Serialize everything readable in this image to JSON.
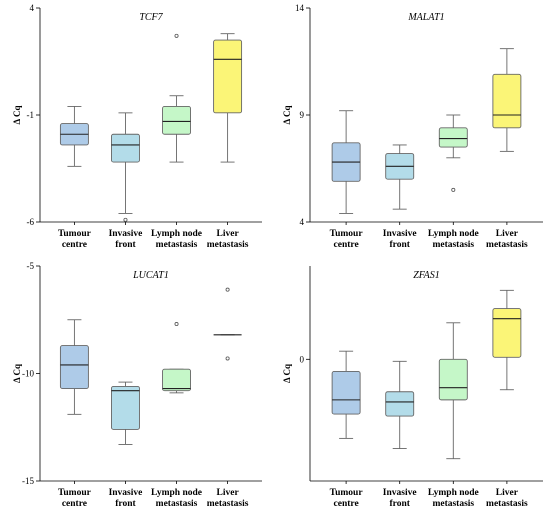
{
  "colors": {
    "tumour_centre": "#aecbe8",
    "invasive_front": "#b3dce9",
    "lymph_node": "#c5f7c8",
    "liver": "#fbf577"
  },
  "chart_data": [
    {
      "type": "box",
      "title": "TCF7",
      "ylabel": "Δ Cq",
      "ylim": [
        -6,
        4
      ],
      "yticks": [
        "4",
        "-1",
        "-6"
      ],
      "categories": [
        {
          "line1": "Tumour",
          "line2": "centre"
        },
        {
          "line1": "Invasive",
          "line2": "front"
        },
        {
          "line1": "Lymph node",
          "line2": "metastasis"
        },
        {
          "line1": "Liver",
          "line2": "metastasis"
        }
      ],
      "boxes": [
        {
          "min": -3.4,
          "q1": -2.4,
          "median": -1.9,
          "q3": -1.4,
          "max": -0.6,
          "outliers": []
        },
        {
          "min": -5.6,
          "q1": -3.2,
          "median": -2.4,
          "q3": -1.9,
          "max": -0.9,
          "outliers": [
            -5.9
          ]
        },
        {
          "min": -3.2,
          "q1": -1.9,
          "median": -1.3,
          "q3": -0.6,
          "max": -0.1,
          "outliers": [
            2.7
          ]
        },
        {
          "min": -3.2,
          "q1": -0.9,
          "median": 1.6,
          "q3": 2.5,
          "max": 2.8,
          "outliers": []
        }
      ]
    },
    {
      "type": "box",
      "title": "MALAT1",
      "ylabel": "Δ Cq",
      "ylim": [
        4,
        14
      ],
      "yticks": [
        "14",
        "9",
        "4"
      ],
      "categories": [
        {
          "line1": "Tumour",
          "line2": "centre"
        },
        {
          "line1": "Invasive",
          "line2": "front"
        },
        {
          "line1": "Lymph node",
          "line2": "metastasis"
        },
        {
          "line1": "Liver",
          "line2": "metastasis"
        }
      ],
      "boxes": [
        {
          "min": 4.4,
          "q1": 5.9,
          "median": 6.8,
          "q3": 7.7,
          "max": 9.2,
          "outliers": []
        },
        {
          "min": 4.6,
          "q1": 6.0,
          "median": 6.6,
          "q3": 7.2,
          "max": 7.6,
          "outliers": []
        },
        {
          "min": 7.0,
          "q1": 7.5,
          "median": 7.9,
          "q3": 8.4,
          "max": 9.0,
          "outliers": [
            5.5
          ]
        },
        {
          "min": 7.3,
          "q1": 8.4,
          "median": 9.0,
          "q3": 10.9,
          "max": 12.1,
          "outliers": []
        }
      ]
    },
    {
      "type": "box",
      "title": "LUCAT1",
      "ylabel": "Δ Cq",
      "ylim": [
        -15,
        -5
      ],
      "yticks": [
        "-5",
        "-10",
        "-15"
      ],
      "categories": [
        {
          "line1": "Tumour",
          "line2": "centre"
        },
        {
          "line1": "Invasive",
          "line2": "front"
        },
        {
          "line1": "Lymph node",
          "line2": "metastasis"
        },
        {
          "line1": "Liver",
          "line2": "metastasis"
        }
      ],
      "boxes": [
        {
          "min": -11.9,
          "q1": -10.7,
          "median": -9.6,
          "q3": -8.7,
          "max": -7.5,
          "outliers": []
        },
        {
          "min": -13.3,
          "q1": -12.6,
          "median": -10.8,
          "q3": -10.6,
          "max": -10.4,
          "outliers": []
        },
        {
          "min": -10.9,
          "q1": -10.8,
          "median": -10.7,
          "q3": -9.8,
          "max": -9.8,
          "outliers": [
            -7.7
          ]
        },
        {
          "min": -8.2,
          "q1": -8.2,
          "median": -8.2,
          "q3": -8.2,
          "max": -8.2,
          "outliers": [
            -6.1,
            -9.3
          ]
        }
      ]
    },
    {
      "type": "box",
      "title": "ZFAS1",
      "ylabel": "Δ Cq",
      "ylim": [
        -6,
        4.6
      ],
      "yticks": [
        "0"
      ],
      "ytick_values": [
        0
      ],
      "categories": [
        {
          "line1": "Tumour",
          "line2": "centre"
        },
        {
          "line1": "Invasive",
          "line2": "front"
        },
        {
          "line1": "Lymph node",
          "line2": "metastasis"
        },
        {
          "line1": "Liver",
          "line2": "metastasis"
        }
      ],
      "boxes": [
        {
          "min": -3.9,
          "q1": -2.7,
          "median": -2.0,
          "q3": -0.6,
          "max": 0.4,
          "outliers": []
        },
        {
          "min": -4.4,
          "q1": -2.8,
          "median": -2.1,
          "q3": -1.6,
          "max": -0.1,
          "outliers": []
        },
        {
          "min": -4.9,
          "q1": -2.0,
          "median": -1.4,
          "q3": 0.0,
          "max": 1.8,
          "outliers": []
        },
        {
          "min": -1.5,
          "q1": 0.1,
          "median": 2.0,
          "q3": 2.5,
          "max": 3.4,
          "outliers": []
        }
      ]
    }
  ]
}
